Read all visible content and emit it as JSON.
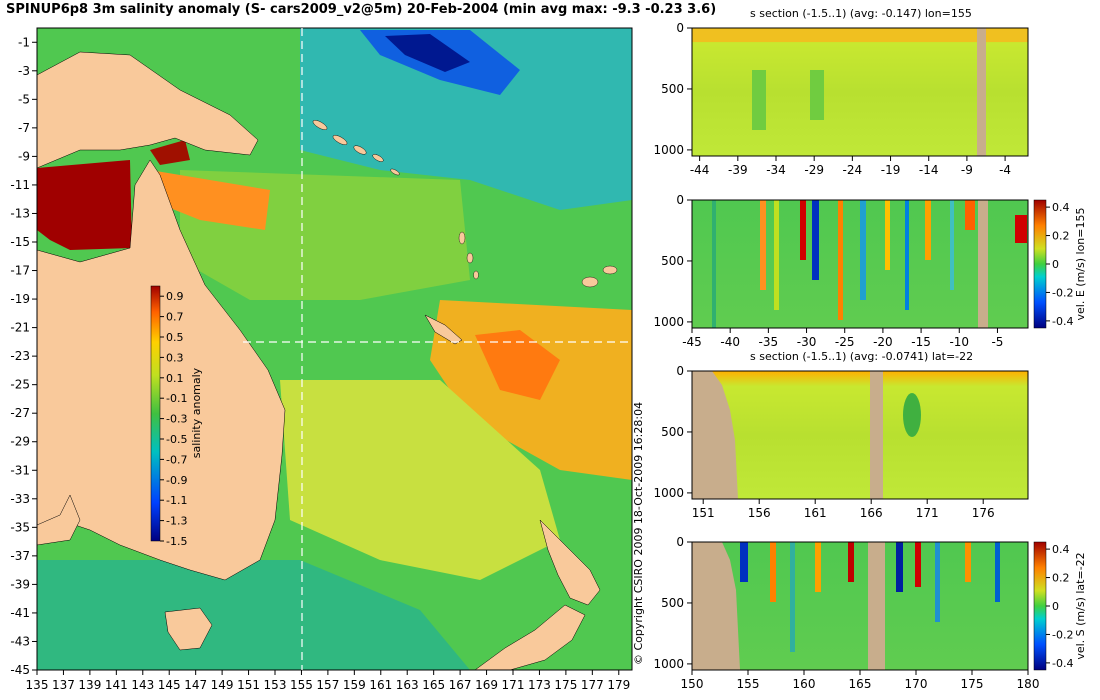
{
  "main_title": "SPINUP6p8 3m salinity anomaly (S- cars2009_v2@5m) 20-Feb-2004 (min avg max: -9.3 -0.23 3.6)",
  "copyright": "© Copyright CSIRO 2009   18-Oct-2009 16:28:04",
  "colors": {
    "land": "#f9c99b",
    "section_land": "#c8ad8c",
    "anom_high": "#a00000",
    "anom_low": "#000080",
    "background": "#ffffff"
  },
  "chart_data": [
    {
      "type": "heatmap",
      "id": "map",
      "title": "SPINUP6p8 3m salinity anomaly (S- cars2009_v2@5m) 20-Feb-2004 (min avg max: -9.3 -0.23 3.6)",
      "x_ticks": [
        "135",
        "137",
        "139",
        "141",
        "143",
        "145",
        "147",
        "149",
        "151",
        "153",
        "155",
        "157",
        "159",
        "161",
        "163",
        "165",
        "167",
        "169",
        "171",
        "173",
        "175",
        "177",
        "179"
      ],
      "y_ticks": [
        "-1",
        "-3",
        "-5",
        "-7",
        "-9",
        "-11",
        "-13",
        "-15",
        "-17",
        "-19",
        "-21",
        "-23",
        "-25",
        "-27",
        "-29",
        "-31",
        "-33",
        "-35",
        "-37",
        "-39",
        "-41",
        "-43",
        "-45"
      ],
      "xlim": [
        135,
        180
      ],
      "ylim": [
        -45,
        0
      ],
      "section_lon": 155,
      "section_lat": -22,
      "colorbar": {
        "label": "salinity anomaly",
        "ticks": [
          "0.9",
          "0.7",
          "0.5",
          "0.3",
          "0.1",
          "-0.1",
          "-0.3",
          "-0.5",
          "-0.7",
          "-0.9",
          "-1.1",
          "-1.3",
          "-1.5"
        ],
        "range": [
          -1.5,
          1.0
        ]
      }
    },
    {
      "type": "heatmap",
      "id": "s_section_lon",
      "title": "s section (-1.5..1) (avg: -0.147) lon=155",
      "x_ticks": [
        "-44",
        "-39",
        "-34",
        "-29",
        "-24",
        "-19",
        "-14",
        "-9",
        "-4"
      ],
      "xlim": [
        -45,
        -1
      ],
      "y_ticks": [
        "0",
        "500",
        "1000"
      ],
      "ylim": [
        1050,
        0
      ]
    },
    {
      "type": "heatmap",
      "id": "vel_e_section",
      "title": "",
      "x_ticks": [
        "-45",
        "-40",
        "-35",
        "-30",
        "-25",
        "-20",
        "-15",
        "-10",
        "-5"
      ],
      "xlim": [
        -45,
        -1
      ],
      "y_ticks": [
        "0",
        "500",
        "1000"
      ],
      "ylim": [
        1050,
        0
      ],
      "colorbar": {
        "label": "vel. E (m/s) lon=155",
        "ticks": [
          "0.4",
          "0.2",
          "0",
          "-0.2",
          "-0.4"
        ],
        "range": [
          -0.45,
          0.45
        ]
      }
    },
    {
      "type": "heatmap",
      "id": "s_section_lat",
      "title": "s section (-1.5..1) (avg: -0.0741) lat=-22",
      "x_ticks": [
        "151",
        "156",
        "161",
        "166",
        "171",
        "176"
      ],
      "xlim": [
        150,
        180
      ],
      "y_ticks": [
        "0",
        "500",
        "1000"
      ],
      "ylim": [
        1050,
        0
      ]
    },
    {
      "type": "heatmap",
      "id": "vel_s_section",
      "title": "",
      "x_ticks": [
        "150",
        "155",
        "160",
        "165",
        "170",
        "175",
        "180"
      ],
      "xlim": [
        150,
        180
      ],
      "y_ticks": [
        "0",
        "500",
        "1000"
      ],
      "ylim": [
        1050,
        0
      ],
      "colorbar": {
        "label": "vel. S (m/s) lat=-22",
        "ticks": [
          "0.4",
          "0.2",
          "0",
          "-0.2",
          "-0.4"
        ],
        "range": [
          -0.45,
          0.45
        ]
      }
    }
  ]
}
